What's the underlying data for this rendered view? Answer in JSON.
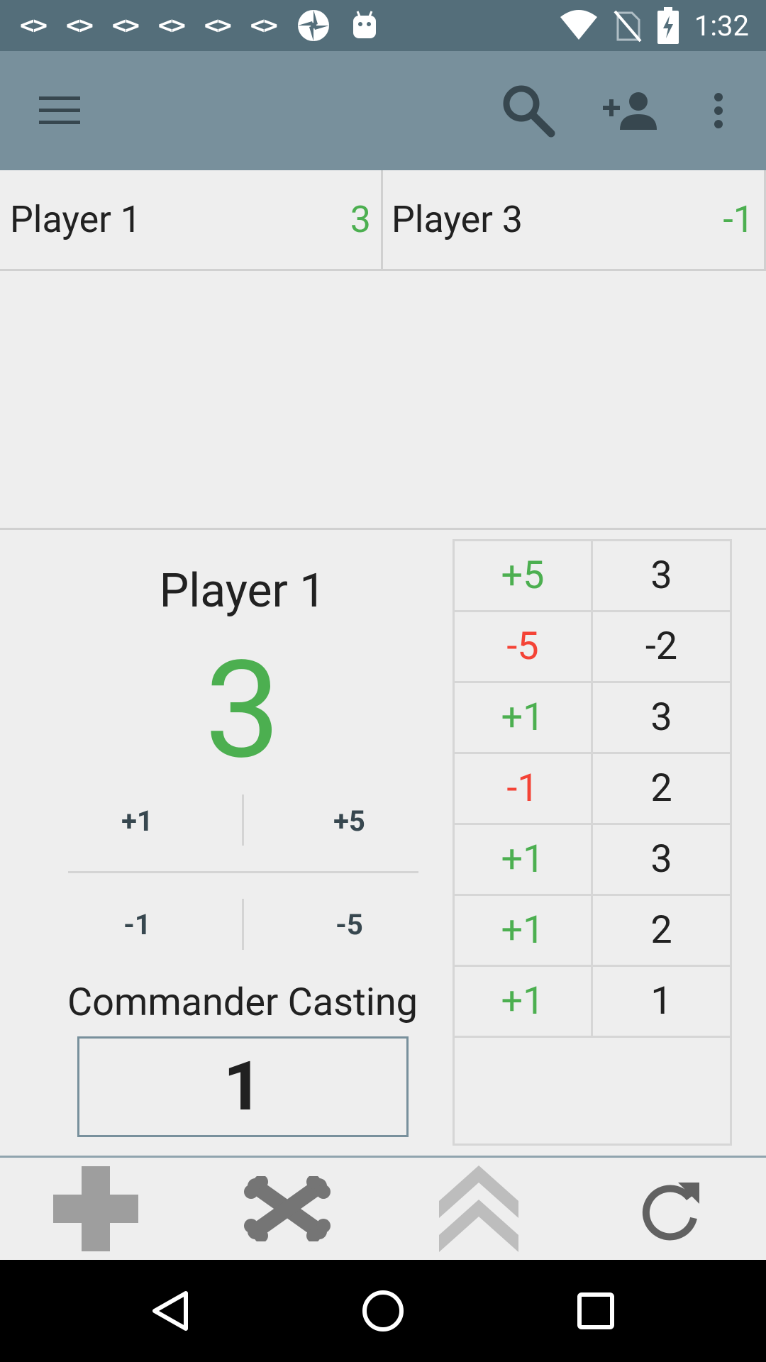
{
  "status_bar": {
    "time": "1:32",
    "notifications": [
      "code-icon",
      "code-icon",
      "code-icon",
      "code-icon",
      "code-icon",
      "code-icon",
      "aperture-icon",
      "android-icon"
    ],
    "code_glyph": "<>",
    "system_icons": [
      "wifi-icon",
      "no-sim-icon",
      "battery-charging-icon"
    ]
  },
  "toolbar": {
    "icons": [
      "menu-icon",
      "search-icon",
      "add-person-icon",
      "overflow-menu-icon"
    ]
  },
  "players": [
    {
      "name": "Player 1",
      "score": "3"
    },
    {
      "name": "Player 3",
      "score": "-1"
    }
  ],
  "selected_player": {
    "name": "Player 1",
    "score": "3",
    "buttons": {
      "plus1": "+1",
      "plus5": "+5",
      "minus1": "-1",
      "minus5": "-5"
    },
    "commander_label": "Commander Casting",
    "commander_value": "1"
  },
  "history": [
    {
      "delta": "+5",
      "total": "3",
      "sign": "pos"
    },
    {
      "delta": "-5",
      "total": "-2",
      "sign": "neg"
    },
    {
      "delta": "+1",
      "total": "3",
      "sign": "pos"
    },
    {
      "delta": "-1",
      "total": "2",
      "sign": "neg"
    },
    {
      "delta": "+1",
      "total": "3",
      "sign": "pos"
    },
    {
      "delta": "+1",
      "total": "2",
      "sign": "pos"
    },
    {
      "delta": "+1",
      "total": "1",
      "sign": "pos"
    }
  ],
  "bottom_actions": [
    "plus-icon",
    "crossbones-icon",
    "double-chevron-up-icon",
    "refresh-icon"
  ],
  "nav": [
    "back-icon",
    "home-icon",
    "recents-icon"
  ],
  "colors": {
    "status_bar": "#546e7a",
    "toolbar": "#78909c",
    "positive": "#4caf50",
    "negative": "#f44336",
    "background": "#eeeeee"
  }
}
